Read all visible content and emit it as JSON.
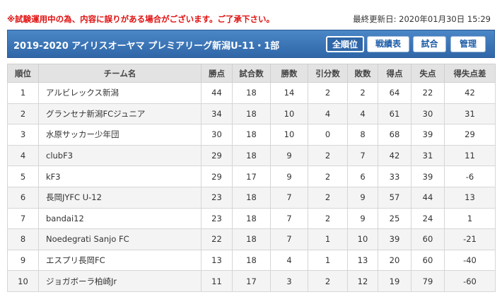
{
  "notice": "※試験運用中の為、内容に誤りがある場合がございます。ご了承下さい。",
  "updated": "最終更新日: 2020年01月30日 15:29",
  "header": {
    "title": "2019-2020 アイリスオーヤマ プレミアリーグ新潟U-11・1部",
    "buttons": [
      "全順位",
      "戦績表",
      "試合",
      "管理"
    ]
  },
  "table": {
    "columns": [
      "順位",
      "チーム名",
      "勝点",
      "試合数",
      "勝数",
      "引分数",
      "敗数",
      "得点",
      "失点",
      "得失点差"
    ],
    "rows": [
      [
        "1",
        "アルビレックス新潟",
        "44",
        "18",
        "14",
        "2",
        "2",
        "64",
        "22",
        "42"
      ],
      [
        "2",
        "グランセナ新潟FCジュニア",
        "34",
        "18",
        "10",
        "4",
        "4",
        "61",
        "30",
        "31"
      ],
      [
        "3",
        "水原サッカー少年団",
        "30",
        "18",
        "10",
        "0",
        "8",
        "68",
        "39",
        "29"
      ],
      [
        "4",
        "clubF3",
        "29",
        "18",
        "9",
        "2",
        "7",
        "42",
        "31",
        "11"
      ],
      [
        "5",
        "kF3",
        "29",
        "17",
        "9",
        "2",
        "6",
        "33",
        "39",
        "-6"
      ],
      [
        "6",
        "長岡JYFC U-12",
        "23",
        "18",
        "7",
        "2",
        "9",
        "57",
        "44",
        "13"
      ],
      [
        "7",
        "bandai12",
        "23",
        "18",
        "7",
        "2",
        "9",
        "25",
        "24",
        "1"
      ],
      [
        "8",
        "Noedegrati Sanjo FC",
        "22",
        "18",
        "7",
        "1",
        "10",
        "39",
        "60",
        "-21"
      ],
      [
        "9",
        "エスプリ長岡FC",
        "13",
        "18",
        "4",
        "1",
        "13",
        "20",
        "60",
        "-40"
      ],
      [
        "10",
        "ジョガボーラ柏崎Jr",
        "11",
        "17",
        "3",
        "2",
        "12",
        "19",
        "79",
        "-60"
      ]
    ]
  }
}
